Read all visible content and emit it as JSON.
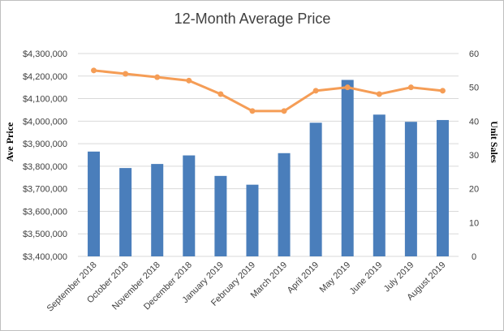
{
  "chart_data": {
    "type": "bar",
    "title": "12-Month Average Price",
    "categories": [
      "September 2018",
      "October 2018",
      "November 2018",
      "December 2018",
      "January 2019",
      "February 2019",
      "March 2019",
      "April 2019",
      "May 2019",
      "June 2019",
      "July 2019",
      "August 2019"
    ],
    "series": [
      {
        "type": "bar",
        "axis": "left",
        "values": [
          3865000,
          3792000,
          3810000,
          3848000,
          3757000,
          3718000,
          3858000,
          3993000,
          4183000,
          4029000,
          3997000,
          4005000
        ]
      },
      {
        "type": "line",
        "axis": "right",
        "values": [
          55,
          54,
          53,
          52,
          48,
          43,
          43,
          49,
          50,
          48,
          50,
          49
        ]
      }
    ],
    "ylabel": "Ave Price",
    "y2label": "Unit Sales",
    "ylim": [
      3400000,
      4300000
    ],
    "y2lim": [
      0,
      60
    ],
    "yticks": [
      "$3,400,000",
      "$3,500,000",
      "$3,600,000",
      "$3,700,000",
      "$3,800,000",
      "$3,900,000",
      "$4,000,000",
      "$4,100,000",
      "$4,200,000",
      "$4,300,000"
    ],
    "y2ticks": [
      "0",
      "10",
      "20",
      "30",
      "40",
      "50",
      "60"
    ],
    "grid": true,
    "legend": "none",
    "colors": {
      "bar": "#4a7ebb",
      "line": "#f59d56",
      "grid": "#d9d9d9"
    }
  }
}
